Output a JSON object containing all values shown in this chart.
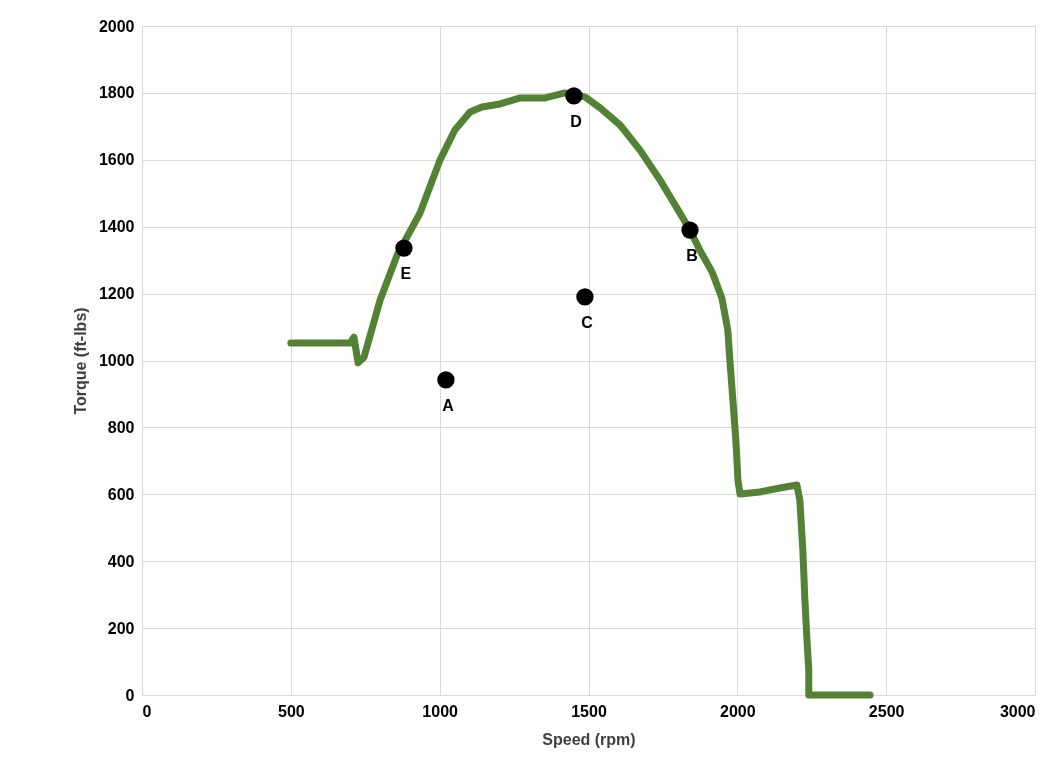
{
  "chart_data": {
    "type": "line",
    "xlabel": "Speed (rpm)",
    "ylabel": "Torque (ft-lbs)",
    "xlim": [
      0,
      3000
    ],
    "xticks": [
      0,
      500,
      1000,
      1500,
      2000,
      2500,
      3000
    ],
    "ylim": [
      0,
      2000
    ],
    "yticks": [
      0,
      200,
      400,
      600,
      800,
      1000,
      1200,
      1400,
      1600,
      1800,
      2000
    ],
    "grid": true,
    "marker": "none",
    "line_style": "solid",
    "series": [
      {
        "color": "#548235",
        "x": [
          500,
          699,
          712,
          726,
          746,
          800,
          857,
          934,
          1001,
          1051,
          1102,
          1142,
          1203,
          1270,
          1354,
          1421,
          1488,
          1539,
          1606,
          1673,
          1740,
          1807,
          1841,
          1874,
          1915,
          1948,
          1968,
          1975,
          1985,
          1995,
          2002,
          2009,
          2076,
          2143,
          2200,
          2210,
          2220,
          2227,
          2234,
          2240,
          2240,
          2446
        ],
        "values": [
          1052,
          1052,
          1070,
          993,
          1010,
          1181,
          1315,
          1441,
          1599,
          1689,
          1743,
          1758,
          1767,
          1785,
          1785,
          1800,
          1788,
          1755,
          1704,
          1629,
          1540,
          1441,
          1390,
          1330,
          1265,
          1187,
          1091,
          1001,
          882,
          762,
          643,
          601,
          607,
          619,
          628,
          583,
          433,
          284,
          164,
          75,
          0,
          0
        ]
      },
      {
        "type": "scatter",
        "color": "#000000",
        "marker": "circle",
        "x": [
          1021,
          1841,
          1488,
          1451,
          880
        ],
        "values": [
          942,
          1390,
          1190,
          1791,
          1336
        ]
      }
    ],
    "annotations": [
      {
        "text": "A",
        "x": 1021,
        "y": 942
      },
      {
        "text": "B",
        "x": 1841,
        "y": 1390
      },
      {
        "text": "C",
        "x": 1488,
        "y": 1190
      },
      {
        "text": "D",
        "x": 1451,
        "y": 1791
      },
      {
        "text": "E",
        "x": 880,
        "y": 1336
      }
    ]
  }
}
